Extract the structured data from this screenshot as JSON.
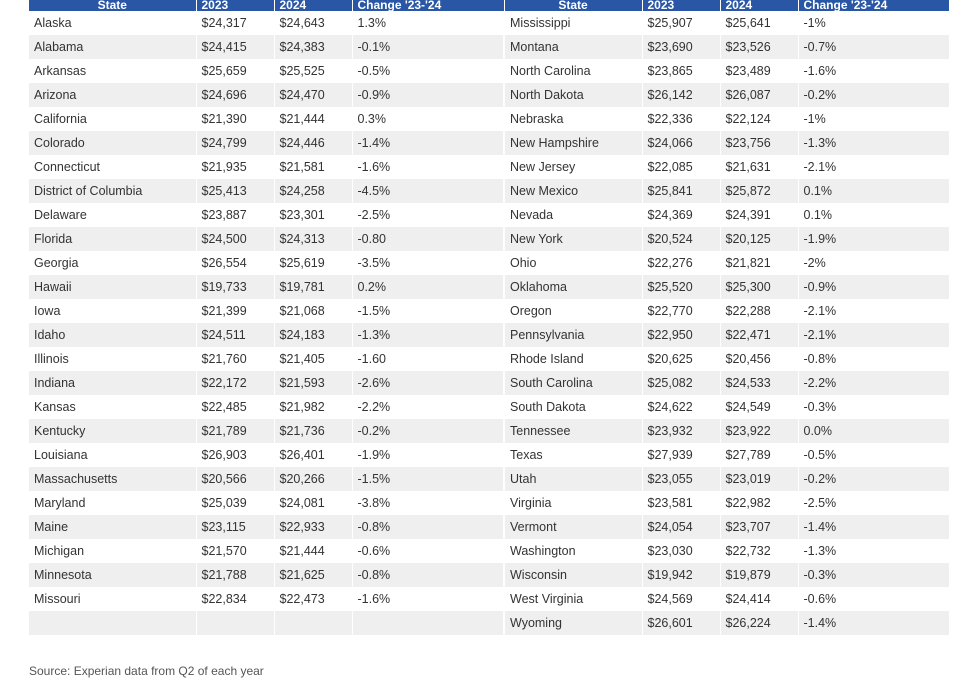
{
  "headers": {
    "state": "State",
    "y2023": "2023",
    "y2024": "2024",
    "change": "Change '23-'24"
  },
  "left_rows": [
    {
      "state": "Alaska",
      "y2023": "$24,317",
      "y2024": "$24,643",
      "change": "1.3%"
    },
    {
      "state": "Alabama",
      "y2023": "$24,415",
      "y2024": "$24,383",
      "change": "-0.1%"
    },
    {
      "state": "Arkansas",
      "y2023": "$25,659",
      "y2024": "$25,525",
      "change": "-0.5%"
    },
    {
      "state": "Arizona",
      "y2023": "$24,696",
      "y2024": "$24,470",
      "change": "-0.9%"
    },
    {
      "state": "California",
      "y2023": "$21,390",
      "y2024": "$21,444",
      "change": "0.3%"
    },
    {
      "state": "Colorado",
      "y2023": "$24,799",
      "y2024": "$24,446",
      "change": "-1.4%"
    },
    {
      "state": "Connecticut",
      "y2023": "$21,935",
      "y2024": "$21,581",
      "change": "-1.6%"
    },
    {
      "state": "District of Columbia",
      "y2023": "$25,413",
      "y2024": "$24,258",
      "change": "-4.5%"
    },
    {
      "state": "Delaware",
      "y2023": "$23,887",
      "y2024": "$23,301",
      "change": "-2.5%"
    },
    {
      "state": "Florida",
      "y2023": "$24,500",
      "y2024": "$24,313",
      "change": "-0.80"
    },
    {
      "state": "Georgia",
      "y2023": "$26,554",
      "y2024": "$25,619",
      "change": "-3.5%"
    },
    {
      "state": "Hawaii",
      "y2023": "$19,733",
      "y2024": "$19,781",
      "change": "0.2%"
    },
    {
      "state": "Iowa",
      "y2023": "$21,399",
      "y2024": "$21,068",
      "change": "-1.5%"
    },
    {
      "state": "Idaho",
      "y2023": "$24,511",
      "y2024": "$24,183",
      "change": "-1.3%"
    },
    {
      "state": "Illinois",
      "y2023": "$21,760",
      "y2024": "$21,405",
      "change": "-1.60"
    },
    {
      "state": "Indiana",
      "y2023": "$22,172",
      "y2024": "$21,593",
      "change": "-2.6%"
    },
    {
      "state": "Kansas",
      "y2023": "$22,485",
      "y2024": "$21,982",
      "change": "-2.2%"
    },
    {
      "state": "Kentucky",
      "y2023": "$21,789",
      "y2024": "$21,736",
      "change": "-0.2%"
    },
    {
      "state": "Louisiana",
      "y2023": "$26,903",
      "y2024": "$26,401",
      "change": "-1.9%"
    },
    {
      "state": "Massachusetts",
      "y2023": "$20,566",
      "y2024": "$20,266",
      "change": "-1.5%"
    },
    {
      "state": "Maryland",
      "y2023": "$25,039",
      "y2024": "$24,081",
      "change": "-3.8%"
    },
    {
      "state": "Maine",
      "y2023": "$23,115",
      "y2024": "$22,933",
      "change": "-0.8%"
    },
    {
      "state": "Michigan",
      "y2023": "$21,570",
      "y2024": "$21,444",
      "change": "-0.6%"
    },
    {
      "state": "Minnesota",
      "y2023": "$21,788",
      "y2024": "$21,625",
      "change": "-0.8%"
    },
    {
      "state": "Missouri",
      "y2023": "$22,834",
      "y2024": "$22,473",
      "change": "-1.6%"
    },
    {
      "state": "",
      "y2023": "",
      "y2024": "",
      "change": ""
    }
  ],
  "right_rows": [
    {
      "state": "Mississippi",
      "y2023": "$25,907",
      "y2024": "$25,641",
      "change": "-1%"
    },
    {
      "state": "Montana",
      "y2023": "$23,690",
      "y2024": "$23,526",
      "change": "-0.7%"
    },
    {
      "state": "North Carolina",
      "y2023": "$23,865",
      "y2024": "$23,489",
      "change": "-1.6%"
    },
    {
      "state": "North Dakota",
      "y2023": "$26,142",
      "y2024": "$26,087",
      "change": "-0.2%"
    },
    {
      "state": "Nebraska",
      "y2023": "$22,336",
      "y2024": "$22,124",
      "change": "-1%"
    },
    {
      "state": "New Hampshire",
      "y2023": "$24,066",
      "y2024": "$23,756",
      "change": "-1.3%"
    },
    {
      "state": "New Jersey",
      "y2023": "$22,085",
      "y2024": "$21,631",
      "change": "-2.1%"
    },
    {
      "state": "New Mexico",
      "y2023": "$25,841",
      "y2024": "$25,872",
      "change": "0.1%"
    },
    {
      "state": "Nevada",
      "y2023": "$24,369",
      "y2024": "$24,391",
      "change": "0.1%"
    },
    {
      "state": "New York",
      "y2023": "$20,524",
      "y2024": "$20,125",
      "change": "-1.9%"
    },
    {
      "state": "Ohio",
      "y2023": "$22,276",
      "y2024": "$21,821",
      "change": "-2%"
    },
    {
      "state": "Oklahoma",
      "y2023": "$25,520",
      "y2024": "$25,300",
      "change": "-0.9%"
    },
    {
      "state": "Oregon",
      "y2023": "$22,770",
      "y2024": "$22,288",
      "change": "-2.1%"
    },
    {
      "state": "Pennsylvania",
      "y2023": "$22,950",
      "y2024": "$22,471",
      "change": "-2.1%"
    },
    {
      "state": "Rhode Island",
      "y2023": "$20,625",
      "y2024": "$20,456",
      "change": "-0.8%"
    },
    {
      "state": "South Carolina",
      "y2023": "$25,082",
      "y2024": "$24,533",
      "change": "-2.2%"
    },
    {
      "state": "South Dakota",
      "y2023": "$24,622",
      "y2024": "$24,549",
      "change": "-0.3%"
    },
    {
      "state": "Tennessee",
      "y2023": "$23,932",
      "y2024": "$23,922",
      "change": "0.0%"
    },
    {
      "state": "Texas",
      "y2023": "$27,939",
      "y2024": "$27,789",
      "change": "-0.5%"
    },
    {
      "state": "Utah",
      "y2023": "$23,055",
      "y2024": "$23,019",
      "change": "-0.2%"
    },
    {
      "state": "Virginia",
      "y2023": "$23,581",
      "y2024": "$22,982",
      "change": "-2.5%"
    },
    {
      "state": "Vermont",
      "y2023": "$24,054",
      "y2024": "$23,707",
      "change": "-1.4%"
    },
    {
      "state": "Washington",
      "y2023": "$23,030",
      "y2024": "$22,732",
      "change": "-1.3%"
    },
    {
      "state": "Wisconsin",
      "y2023": "$19,942",
      "y2024": "$19,879",
      "change": "-0.3%"
    },
    {
      "state": "West Virginia",
      "y2023": "$24,569",
      "y2024": "$24,414",
      "change": "-0.6%"
    },
    {
      "state": "Wyoming",
      "y2023": "$26,601",
      "y2024": "$26,224",
      "change": "-1.4%"
    }
  ],
  "source": "Source: Experian data from Q2 of each year",
  "colors": {
    "header_bg": "#2a56a6",
    "stripe": "#efefef"
  }
}
